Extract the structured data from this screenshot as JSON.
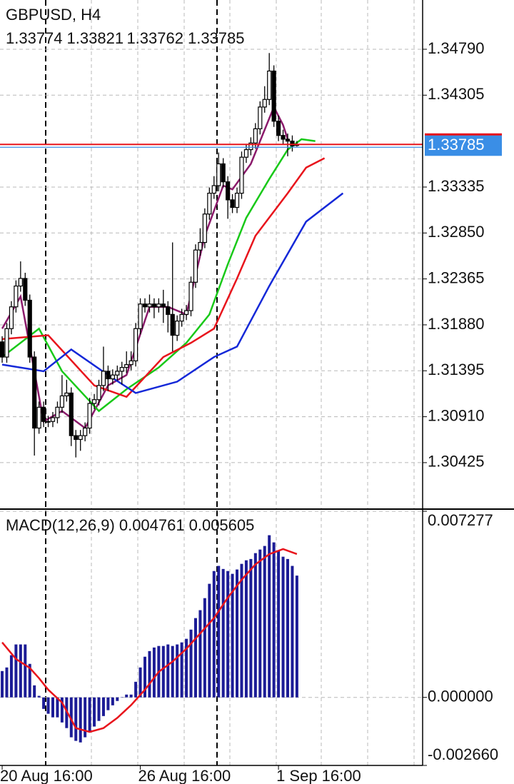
{
  "chart_data": [
    {
      "type": "candlestick",
      "title": "GBPUSD, H4",
      "xlim": [
        -0.47,
        91.3
      ],
      "ylim": [
        1.29942,
        1.3531
      ],
      "yticks": [
        {
          "value": 1.3479,
          "label": "1.34790"
        },
        1.34305,
        1.33335,
        {
          "value": 1.3285,
          "label": "1.32850"
        },
        1.32365,
        {
          "value": 1.3188,
          "label": "1.31880"
        },
        1.31395,
        {
          "value": 1.3091,
          "label": "1.30910"
        },
        1.30425
      ],
      "grid": true,
      "up_color": "#ffffff",
      "down_color": "#000000",
      "price_line_color": "#e8141c",
      "price_label_color": "#3a8ee6",
      "open": [
        1.317,
        1.3154,
        1.3184,
        1.3207,
        1.3229,
        1.3237,
        1.3214,
        1.3154,
        1.3079,
        1.3101,
        1.3086,
        1.3086,
        1.309,
        1.3101,
        1.3113,
        1.3116,
        1.3071,
        1.3067,
        1.3071,
        1.3079,
        1.3105,
        1.3109,
        1.3124,
        1.3139,
        1.3131,
        1.3135,
        1.3139,
        1.3143,
        1.3146,
        1.315,
        1.3184,
        1.321,
        1.3207,
        1.321,
        1.3207,
        1.321,
        1.3207,
        1.3199,
        1.3177,
        1.3192,
        1.3199,
        1.3203,
        1.3233,
        1.3267,
        1.3275,
        1.3305,
        1.3327,
        1.3335,
        1.3358,
        1.3339,
        1.332,
        1.3312,
        1.3327,
        1.3365,
        1.3373,
        1.338,
        1.3395,
        1.3418,
        1.3426,
        1.3456,
        1.3403,
        1.3388,
        1.3384,
        1.3382,
        1.33774
      ],
      "high": [
        1.3176,
        1.319,
        1.3213,
        1.3235,
        1.3255,
        1.3243,
        1.322,
        1.316,
        1.3107,
        1.3107,
        1.3092,
        1.3096,
        1.3107,
        1.3135,
        1.313,
        1.3122,
        1.3077,
        1.3077,
        1.3085,
        1.3111,
        1.3115,
        1.313,
        1.3165,
        1.3145,
        1.3141,
        1.3145,
        1.3149,
        1.316,
        1.316,
        1.319,
        1.3216,
        1.3216,
        1.322,
        1.3216,
        1.3216,
        1.3225,
        1.3213,
        1.3275,
        1.3198,
        1.3205,
        1.3209,
        1.3239,
        1.3273,
        1.329,
        1.3311,
        1.3333,
        1.3345,
        1.337,
        1.3364,
        1.3345,
        1.3326,
        1.3333,
        1.3371,
        1.3379,
        1.3386,
        1.3401,
        1.3424,
        1.344,
        1.3475,
        1.3462,
        1.3409,
        1.3394,
        1.339,
        1.3388,
        1.33821
      ],
      "low": [
        1.3148,
        1.3148,
        1.3178,
        1.3201,
        1.3223,
        1.3208,
        1.3148,
        1.305,
        1.3073,
        1.308,
        1.308,
        1.308,
        1.3084,
        1.3095,
        1.3107,
        1.306,
        1.3048,
        1.3055,
        1.3065,
        1.3073,
        1.3099,
        1.3103,
        1.3118,
        1.3118,
        1.3125,
        1.3129,
        1.3125,
        1.3137,
        1.314,
        1.3144,
        1.3178,
        1.3201,
        1.3201,
        1.3195,
        1.3201,
        1.319,
        1.318,
        1.316,
        1.3171,
        1.3186,
        1.3193,
        1.3197,
        1.3227,
        1.3261,
        1.3269,
        1.3299,
        1.3321,
        1.3329,
        1.3333,
        1.33,
        1.3306,
        1.3306,
        1.3321,
        1.3359,
        1.3367,
        1.3374,
        1.3389,
        1.3412,
        1.342,
        1.3397,
        1.3382,
        1.3378,
        1.3366,
        1.3371,
        1.33762
      ],
      "close": [
        1.3154,
        1.3184,
        1.3207,
        1.3229,
        1.3237,
        1.3214,
        1.3154,
        1.3079,
        1.3101,
        1.3086,
        1.3086,
        1.309,
        1.3101,
        1.3113,
        1.3116,
        1.3071,
        1.3067,
        1.3071,
        1.3079,
        1.3105,
        1.3109,
        1.3124,
        1.3139,
        1.3131,
        1.3135,
        1.3139,
        1.3143,
        1.3146,
        1.315,
        1.3184,
        1.321,
        1.3207,
        1.321,
        1.3207,
        1.321,
        1.3207,
        1.3199,
        1.3177,
        1.3192,
        1.3199,
        1.3203,
        1.3233,
        1.3267,
        1.3275,
        1.3305,
        1.3327,
        1.3335,
        1.3358,
        1.3339,
        1.332,
        1.3312,
        1.3327,
        1.3365,
        1.3373,
        1.338,
        1.3395,
        1.3418,
        1.3426,
        1.3456,
        1.3403,
        1.3388,
        1.3384,
        1.3382,
        1.3377,
        1.33785
      ],
      "lines": [
        {
          "color": "#8b1a6b",
          "x": [
            0,
            4,
            9,
            13,
            18,
            23,
            27,
            32,
            36,
            40,
            44,
            48,
            50,
            54,
            59,
            61,
            62
          ],
          "values": [
            1.3184,
            1.3218,
            1.3086,
            1.3097,
            1.3079,
            1.3124,
            1.3135,
            1.3207,
            1.3207,
            1.3199,
            1.3282,
            1.3335,
            1.3331,
            1.3358,
            1.3418,
            1.3399,
            1.3384
          ]
        },
        {
          "color": "#19c919",
          "x": [
            0,
            8,
            13,
            21,
            27,
            34,
            40,
            45,
            49,
            53,
            58,
            62,
            65,
            68
          ],
          "values": [
            1.3154,
            1.3184,
            1.3139,
            1.3097,
            1.312,
            1.3143,
            1.3169,
            1.3199,
            1.3252,
            1.3301,
            1.3342,
            1.3373,
            1.3384,
            1.3382
          ]
        },
        {
          "color": "#e8141c",
          "x": [
            0,
            10,
            20,
            27,
            35,
            41,
            46,
            51,
            55,
            62,
            66,
            70
          ],
          "values": [
            1.3173,
            1.3177,
            1.3124,
            1.3112,
            1.3154,
            1.3169,
            1.3184,
            1.3237,
            1.3282,
            1.3327,
            1.3354,
            1.3364
          ]
        },
        {
          "color": "#1428d8",
          "x": [
            0,
            9,
            15,
            23,
            29,
            38,
            46,
            51,
            58,
            66,
            74
          ],
          "values": [
            1.3146,
            1.3139,
            1.3162,
            1.3135,
            1.3116,
            1.3128,
            1.3154,
            1.3165,
            1.3229,
            1.3297,
            1.3327
          ]
        }
      ]
    },
    {
      "type": "macd",
      "title": "MACD(12,26,9)",
      "xlim": [
        -0.47,
        91.3
      ],
      "ylim": [
        -0.00266,
        0.007277
      ],
      "yticks": [
        0.007277,
        {
          "value": 0,
          "label": "0.000000"
        },
        {
          "value": -0.00266,
          "label": "-0.002660"
        }
      ],
      "xticks": [
        {
          "value": 0,
          "label": "20 Aug 16:00"
        },
        {
          "value": 30,
          "label": "26 Aug 16:00"
        },
        {
          "value": 60,
          "label": "1 Sep 16:00"
        }
      ],
      "grid": true,
      "histogram": {
        "color": "#1c1c96",
        "values": [
          0.00103,
          0.00117,
          0.00165,
          0.00207,
          0.00207,
          0.00207,
          0.00131,
          0.00047,
          6e-05,
          -0.00045,
          -0.00064,
          -0.00078,
          -0.00078,
          -0.00098,
          -0.0012,
          -0.00156,
          -0.0017,
          -0.00176,
          -0.00156,
          -0.00134,
          -0.00114,
          -0.00092,
          -0.00073,
          -0.0005,
          -0.00031,
          -0.00014,
          1e-05,
          0.00011,
          0.00011,
          0.00061,
          0.00117,
          0.00159,
          0.00181,
          0.00195,
          0.00201,
          0.00201,
          0.00207,
          0.00201,
          0.00207,
          0.00215,
          0.00229,
          0.00265,
          0.0031,
          0.00341,
          0.00388,
          0.00444,
          0.00494,
          0.00514,
          0.00502,
          0.00494,
          0.00483,
          0.005,
          0.00522,
          0.00536,
          0.00541,
          0.00564,
          0.00578,
          0.00592,
          0.00634,
          0.00606,
          0.00572,
          0.0055,
          0.00541,
          0.00514,
          0.004761
        ]
      },
      "signal": {
        "color": "#e8141c",
        "x": [
          0,
          3,
          6,
          8,
          10,
          13,
          16,
          19,
          22,
          25,
          28,
          31,
          34,
          37,
          40,
          43,
          46,
          49,
          52,
          55,
          58,
          61,
          64
        ],
        "values": [
          0.00215,
          0.0015,
          0.00115,
          0.00075,
          0.0003,
          -0.0002,
          -0.0012,
          -0.00135,
          -0.0012,
          -0.0008,
          -0.0003,
          0.0003,
          0.001,
          0.0014,
          0.0019,
          0.0025,
          0.0031,
          0.0039,
          0.0046,
          0.0052,
          0.0056,
          0.0058,
          0.005605
        ]
      }
    }
  ]
}
